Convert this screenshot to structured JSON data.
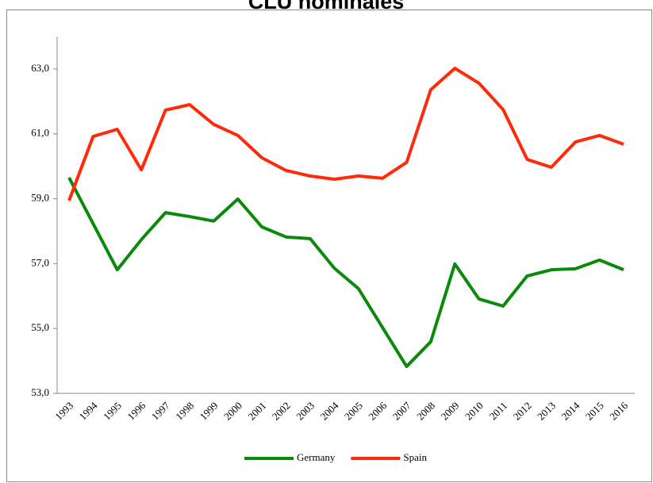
{
  "chart_data": {
    "type": "line",
    "title": "CLU nominales",
    "categories": [
      "1993",
      "1994",
      "1995",
      "1996",
      "1997",
      "1998",
      "1999",
      "2000",
      "2001",
      "2002",
      "2003",
      "2004",
      "2005",
      "2006",
      "2007",
      "2008",
      "2009",
      "2010",
      "2011",
      "2012",
      "2013",
      "2014",
      "2015",
      "2016"
    ],
    "series": [
      {
        "name": "Germany",
        "color": "#0a8a0a",
        "values": [
          59.65,
          58.23,
          56.81,
          57.74,
          58.57,
          58.45,
          58.31,
          58.99,
          58.13,
          57.82,
          57.77,
          56.86,
          56.23,
          55.03,
          53.83,
          54.59,
          56.99,
          55.91,
          55.69,
          56.62,
          56.81,
          56.84,
          57.11,
          56.81
        ]
      },
      {
        "name": "Spain",
        "color": "#ff2a0a",
        "values": [
          58.94,
          60.92,
          61.14,
          59.89,
          61.73,
          61.9,
          61.29,
          60.95,
          60.26,
          59.87,
          59.7,
          59.6,
          59.7,
          59.63,
          60.12,
          62.36,
          63.02,
          62.56,
          61.75,
          60.21,
          59.97,
          60.75,
          60.95,
          60.68
        ]
      }
    ],
    "ylim": [
      53,
      64
    ],
    "yticks": [
      {
        "value": 53,
        "label": "53,0"
      },
      {
        "value": 55,
        "label": "55,0"
      },
      {
        "value": 57,
        "label": "57,0"
      },
      {
        "value": 59,
        "label": "59,0"
      },
      {
        "value": 61,
        "label": "61,0"
      },
      {
        "value": 63,
        "label": "63,0"
      }
    ],
    "legend": "bottom"
  }
}
